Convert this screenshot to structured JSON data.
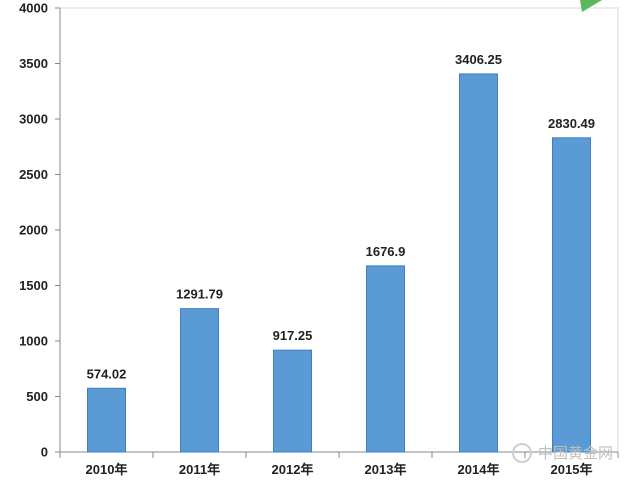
{
  "chart_data": {
    "type": "bar",
    "categories": [
      "2010年",
      "2011年",
      "2012年",
      "2013年",
      "2014年",
      "2015年"
    ],
    "values": [
      574.02,
      1291.79,
      917.25,
      1676.9,
      3406.25,
      2830.49
    ],
    "value_labels": [
      "574.02",
      "1291.79",
      "917.25",
      "1676.9",
      "3406.25",
      "2830.49"
    ],
    "title": "",
    "xlabel": "",
    "ylabel": "",
    "ylim": [
      0,
      4000
    ],
    "yticks": [
      "0",
      "500",
      "1000",
      "1500",
      "2000",
      "2500",
      "3000",
      "3500",
      "4000"
    ],
    "grid": false,
    "legend": "none",
    "colors": {
      "bar": "#5b9bd5",
      "bar_edge": "#3f7fbf",
      "axis": "#888888",
      "text": "#222222",
      "accent_corner": "#5cb85c"
    }
  },
  "watermark": {
    "text": "中国黄金网"
  }
}
